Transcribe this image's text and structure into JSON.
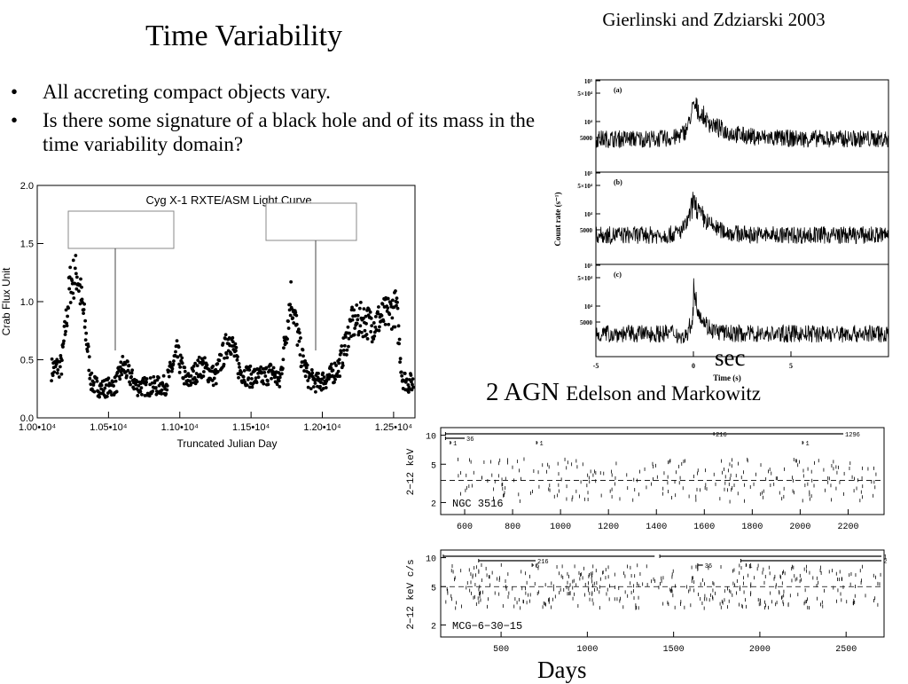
{
  "slide": {
    "title": "Time Variability",
    "citation": "Gierlinski and Zdziarski 2003",
    "bullets": [
      "All accreting compact objects vary.",
      "Is there some signature of a black hole and of its mass in the time variability domain?"
    ],
    "bullet_symbol": "•",
    "agn_heading_main": "2 AGN",
    "agn_heading_small": "Edelson and Markowitz",
    "sec_label": "sec",
    "days_label": "Days"
  },
  "chart_data": [
    {
      "type": "scatter",
      "title": "Cyg X-1 RXTE/ASM Light Curve",
      "xlabel": "Truncated Julian Day",
      "ylabel": "Crab Flux Unit",
      "xlim": [
        10000,
        12650
      ],
      "ylim": [
        0,
        2.0
      ],
      "x_ticks": [
        10000,
        10500,
        11000,
        11500,
        12000,
        12500
      ],
      "x_tick_labels": [
        "1.00•10⁴",
        "1.05•10⁴",
        "1.10•10⁴",
        "1.15•10⁴",
        "1.20•10⁴",
        "1.25•10⁴"
      ],
      "y_ticks": [
        0,
        0.5,
        1.0,
        1.5,
        2.0
      ],
      "y_tick_labels": [
        "0.0",
        "0.5",
        "1.0",
        "1.5",
        "2.0"
      ],
      "grid": false,
      "envelope": {
        "x": [
          10100,
          10170,
          10230,
          10280,
          10330,
          10380,
          10450,
          10550,
          10600,
          10700,
          10800,
          10900,
          10980,
          11050,
          11150,
          11250,
          11350,
          11420,
          11500,
          11580,
          11650,
          11700,
          11780,
          11850,
          11900,
          11960,
          12050,
          12120,
          12200,
          12280,
          12350,
          12400,
          12460,
          12520,
          12560,
          12600,
          12640
        ],
        "y": [
          0.42,
          0.45,
          1.15,
          1.25,
          0.85,
          0.3,
          0.25,
          0.28,
          0.45,
          0.27,
          0.27,
          0.28,
          0.55,
          0.3,
          0.45,
          0.35,
          0.7,
          0.4,
          0.35,
          0.35,
          0.4,
          0.3,
          1.05,
          0.55,
          0.35,
          0.3,
          0.35,
          0.45,
          0.8,
          0.85,
          0.8,
          0.85,
          0.9,
          0.95,
          0.35,
          0.3,
          0.3
        ]
      },
      "annotation_boxes": 2
    },
    {
      "type": "line",
      "panels": [
        "(a)",
        "(b)",
        "(c)"
      ],
      "xlabel": "Time (s)",
      "ylabel": "Count rate (s⁻¹)",
      "yscale": "log",
      "xlim": [
        -5,
        10
      ],
      "x_ticks": [
        -5,
        0,
        5
      ],
      "y_tick_labels": [
        "10⁵",
        "5×10⁴",
        "10⁴",
        "5000"
      ],
      "series_profiles": {
        "a": {
          "baseline": 0.35,
          "peak": 0.8,
          "peak_width": 1.1,
          "pre_jump": 0
        },
        "b": {
          "baseline": 0.3,
          "peak": 0.78,
          "peak_width": 0.7,
          "pre_jump": 0
        },
        "c": {
          "baseline": 0.22,
          "peak": 0.85,
          "peak_width": 0.4,
          "pre_jump": 0.3
        }
      }
    },
    {
      "type": "scatter",
      "label": "NGC 3516",
      "ylabel": "2−12 keV",
      "xlim": [
        500,
        2350
      ],
      "x_ticks": [
        600,
        800,
        1000,
        1200,
        1400,
        1600,
        1800,
        2000,
        2200
      ],
      "y_tick_labels": [
        "10",
        "5",
        "2"
      ],
      "mean_level": 3.4,
      "segments": [
        {
          "x0": 520,
          "x1": 1640,
          "y": 1,
          "label": "216"
        },
        {
          "x0": 1640,
          "x1": 2180,
          "y": 1,
          "label": "1296"
        },
        {
          "x0": 520,
          "x1": 600,
          "y": 2,
          "label": "36"
        },
        {
          "x0": 540,
          "x1": 545,
          "y": 3,
          "label": "1"
        },
        {
          "x0": 900,
          "x1": 905,
          "y": 3,
          "label": "1"
        },
        {
          "x0": 2010,
          "x1": 2015,
          "y": 3,
          "label": "1"
        }
      ]
    },
    {
      "type": "scatter",
      "label": "MCG−6−30−15",
      "ylabel": "2−12 keV c/s",
      "xlim": [
        150,
        2720
      ],
      "x_ticks": [
        500,
        1000,
        1500,
        2000,
        2500
      ],
      "y_tick_labels": [
        "10",
        "5",
        "2"
      ],
      "mean_level": 5.0,
      "segments": [
        {
          "x0": 165,
          "x1": 1390,
          "y": 1,
          "label": ""
        },
        {
          "x0": 1420,
          "x1": 2705,
          "y": 1,
          "label": "1296"
        },
        {
          "x0": 370,
          "x1": 700,
          "y": 2,
          "label": "216"
        },
        {
          "x0": 1890,
          "x1": 2705,
          "y": 2,
          "label": "216"
        },
        {
          "x0": 680,
          "x1": 690,
          "y": 3,
          "label": "6"
        },
        {
          "x0": 1640,
          "x1": 1670,
          "y": 3,
          "label": "36"
        },
        {
          "x0": 1920,
          "x1": 1925,
          "y": 3,
          "label": "1"
        }
      ]
    }
  ]
}
